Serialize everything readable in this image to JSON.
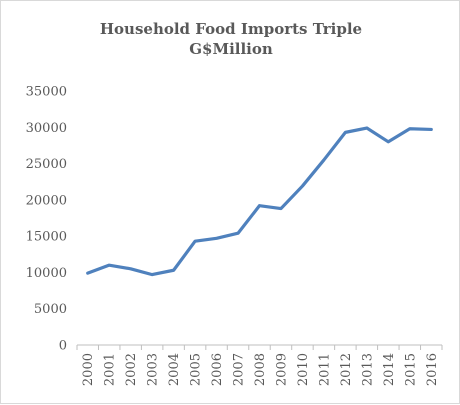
{
  "chart_data": {
    "type": "line",
    "title": "Household Food Imports Triple",
    "subtitle": "G$Million",
    "xlabel": "",
    "ylabel": "",
    "categories": [
      "2000",
      "2001",
      "2002",
      "2003",
      "2004",
      "2005",
      "2006",
      "2007",
      "2008",
      "2009",
      "2010",
      "2011",
      "2012",
      "2013",
      "2014",
      "2015",
      "2016"
    ],
    "series": [
      {
        "values": [
          9900,
          11000,
          10500,
          9700,
          10300,
          14300,
          14700,
          15400,
          19200,
          18800,
          21900,
          25500,
          29300,
          29900,
          28000,
          29800,
          29700
        ]
      }
    ],
    "ylim": [
      0,
      35000
    ],
    "yticks": [
      0,
      5000,
      10000,
      15000,
      20000,
      25000,
      30000,
      35000
    ],
    "grid": false,
    "legend": "none",
    "colors": {
      "line": "#4f81bd",
      "axis": "#bfbfbf",
      "text": "#595959"
    }
  }
}
